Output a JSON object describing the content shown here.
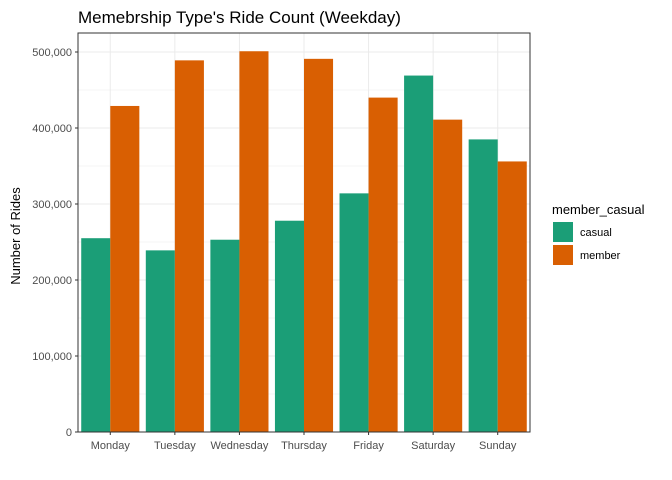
{
  "chart_data": {
    "type": "bar",
    "title": "Memebrship Type's Ride Count (Weekday)",
    "xlabel": "",
    "ylabel": "Number of Rides",
    "categories": [
      "Monday",
      "Tuesday",
      "Wednesday",
      "Thursday",
      "Friday",
      "Saturday",
      "Sunday"
    ],
    "series": [
      {
        "name": "casual",
        "color": "#1b9e77",
        "values": [
          255000,
          239000,
          253000,
          278000,
          314000,
          469000,
          385000
        ]
      },
      {
        "name": "member",
        "color": "#d95f02",
        "values": [
          429000,
          489000,
          501000,
          491000,
          440000,
          411000,
          356000
        ]
      }
    ],
    "ylim": [
      0,
      525000
    ],
    "yticks": [
      0,
      100000,
      200000,
      300000,
      400000,
      500000
    ],
    "ytick_labels": [
      "0",
      "100,000",
      "200,000",
      "300,000",
      "400,000",
      "500,000"
    ],
    "legend": {
      "title": "member_casual",
      "position": "right"
    },
    "grid": true,
    "panel_border_color": "#333333",
    "grid_color": "#ebebeb"
  }
}
